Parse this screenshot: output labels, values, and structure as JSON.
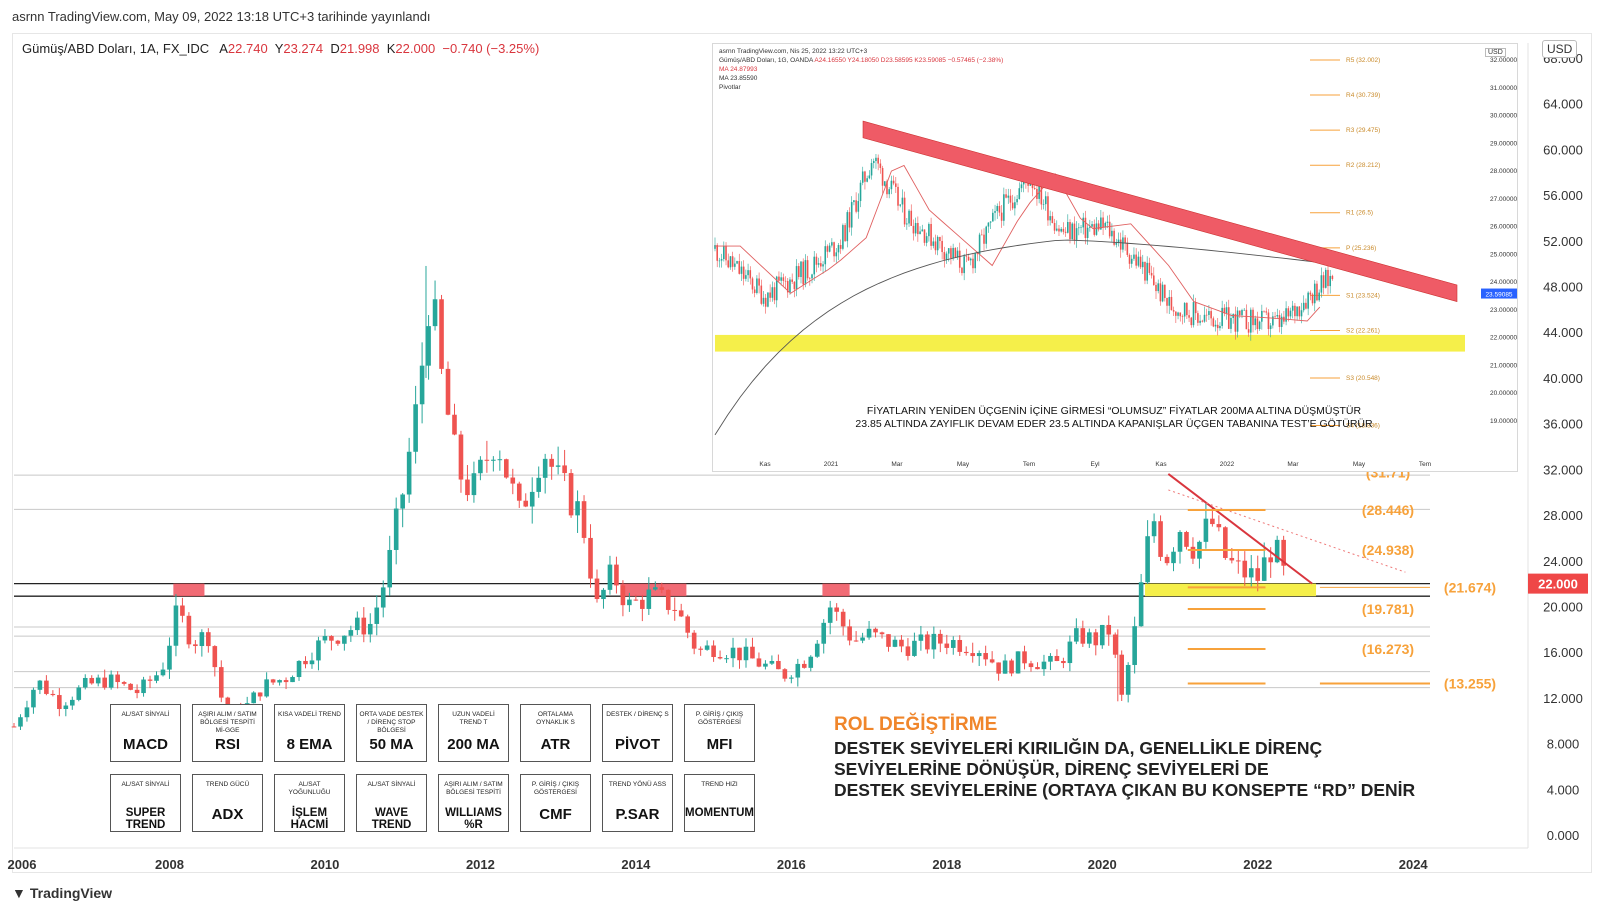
{
  "header": {
    "published": "asrnn TradingView.com, May 09, 2022 13:18 UTC+3 tarihinde yayınlandı"
  },
  "symbol": {
    "name": "Gümüş/ABD Doları, 1A, FX_IDC",
    "o_label": "A",
    "o": "22.740",
    "h_label": "Y",
    "h": "23.274",
    "l_label": "D",
    "l": "21.998",
    "c_label": "K",
    "c": "22.000",
    "change": "−0.740 (−3.25%)"
  },
  "currency_button": "USD",
  "footer_logo": "TradingView",
  "colors": {
    "up": "#26a69a",
    "down": "#ef5350",
    "level": "#f7a23b",
    "zone": "#f5ef4a",
    "res_block": "#ef5b66",
    "price_tag": "#ef4747"
  },
  "chart_data": [
    {
      "type": "candlestick",
      "title": "Gümüş/ABD Doları, 1A, FX_IDC",
      "x_ticks": [
        "2006",
        "2008",
        "2010",
        "2012",
        "2014",
        "2016",
        "2018",
        "2020",
        "2022",
        "2024"
      ],
      "y_ticks": [
        "0.000",
        "4.000",
        "8.000",
        "12.000",
        "16.000",
        "20.000",
        "24.000",
        "28.000",
        "32.000",
        "36.000",
        "40.000",
        "44.000",
        "48.000",
        "52.000",
        "56.000",
        "60.000",
        "64.000",
        "68.000"
      ],
      "ylim": [
        0,
        68
      ],
      "xlim": [
        2006,
        2024.5
      ],
      "last_price": "22.000",
      "levels": [
        {
          "label": "(28.446)",
          "value": 28.446
        },
        {
          "label": "(24.938)",
          "value": 24.938
        },
        {
          "label": "(21.674)",
          "value": 21.674
        },
        {
          "label": "(19.781)",
          "value": 19.781
        },
        {
          "label": "(16.273)",
          "value": 16.273
        },
        {
          "label": "(13.255)",
          "value": 13.255
        },
        {
          "label": "(31.71)",
          "value": 31.71
        }
      ],
      "support_resistance_band": [
        20.9,
        22.0
      ],
      "price_path": [
        [
          2006.0,
          9.5
        ],
        [
          2006.3,
          13.5
        ],
        [
          2006.6,
          11.5
        ],
        [
          2006.9,
          13.0
        ],
        [
          2007.2,
          13.6
        ],
        [
          2007.6,
          12.5
        ],
        [
          2007.9,
          14.5
        ],
        [
          2008.1,
          19.5
        ],
        [
          2008.3,
          17.0
        ],
        [
          2008.5,
          17.5
        ],
        [
          2008.7,
          11.0
        ],
        [
          2008.9,
          10.5
        ],
        [
          2009.2,
          13.0
        ],
        [
          2009.5,
          13.8
        ],
        [
          2009.8,
          16.0
        ],
        [
          2010.0,
          17.0
        ],
        [
          2010.3,
          18.0
        ],
        [
          2010.6,
          18.5
        ],
        [
          2010.8,
          23.0
        ],
        [
          2011.0,
          30.0
        ],
        [
          2011.2,
          38.0
        ],
        [
          2011.35,
          48.0
        ],
        [
          2011.5,
          40.0
        ],
        [
          2011.7,
          32.0
        ],
        [
          2011.9,
          30.0
        ],
        [
          2012.2,
          35.0
        ],
        [
          2012.5,
          28.0
        ],
        [
          2012.8,
          34.0
        ],
        [
          2013.0,
          31.0
        ],
        [
          2013.3,
          28.0
        ],
        [
          2013.5,
          20.0
        ],
        [
          2013.7,
          23.0
        ],
        [
          2013.9,
          20.0
        ],
        [
          2014.2,
          21.0
        ],
        [
          2014.5,
          20.0
        ],
        [
          2014.8,
          16.0
        ],
        [
          2015.0,
          16.5
        ],
        [
          2015.3,
          16.0
        ],
        [
          2015.6,
          15.0
        ],
        [
          2015.9,
          14.0
        ],
        [
          2016.2,
          15.5
        ],
        [
          2016.5,
          20.0
        ],
        [
          2016.8,
          17.0
        ],
        [
          2017.0,
          17.5
        ],
        [
          2017.4,
          16.5
        ],
        [
          2017.7,
          16.7
        ],
        [
          2018.0,
          17.0
        ],
        [
          2018.4,
          16.5
        ],
        [
          2018.7,
          14.5
        ],
        [
          2019.0,
          15.5
        ],
        [
          2019.4,
          14.8
        ],
        [
          2019.7,
          17.5
        ],
        [
          2019.9,
          17.0
        ],
        [
          2020.1,
          18.0
        ],
        [
          2020.25,
          12.0
        ],
        [
          2020.4,
          17.0
        ],
        [
          2020.55,
          24.0
        ],
        [
          2020.65,
          28.0
        ],
        [
          2020.8,
          24.0
        ],
        [
          2021.0,
          27.0
        ],
        [
          2021.2,
          25.0
        ],
        [
          2021.4,
          27.5
        ],
        [
          2021.6,
          24.0
        ],
        [
          2021.8,
          23.0
        ],
        [
          2022.0,
          22.5
        ],
        [
          2022.2,
          25.5
        ],
        [
          2022.35,
          22.5
        ]
      ]
    },
    {
      "type": "candlestick",
      "title": "Gümüş/ABD Doları, 1G, OANDA",
      "x_ticks": [
        "Kas",
        "2021",
        "Mar",
        "May",
        "Tem",
        "Eyl",
        "Kas",
        "2022",
        "Mar",
        "May",
        "Tem"
      ],
      "y_ticks": [
        "19.00000",
        "20.00000",
        "21.00000",
        "22.00000",
        "23.00000",
        "24.00000",
        "25.00000",
        "26.00000",
        "27.00000",
        "28.00000",
        "29.00000",
        "30.00000",
        "31.00000",
        "32.00000"
      ],
      "ylim": [
        18.8,
        32.3
      ],
      "pivots": [
        {
          "label": "R5 (32.002)",
          "value": 32.002
        },
        {
          "label": "R4 (30.739)",
          "value": 30.739
        },
        {
          "label": "R3 (29.475)",
          "value": 29.475
        },
        {
          "label": "R2 (28.212)",
          "value": 28.212
        },
        {
          "label": "R1 (26.5)",
          "value": 26.5
        },
        {
          "label": "P (25.236)",
          "value": 25.236
        },
        {
          "label": "S1 (23.524)",
          "value": 23.524
        },
        {
          "label": "S2 (22.261)",
          "value": 22.261
        },
        {
          "label": "S3 (20.548)",
          "value": 20.548
        },
        {
          "label": "S4 (18.836)",
          "value": 18.836
        }
      ],
      "last_price": "23.59085"
    }
  ],
  "inset": {
    "watermark": "asrnn TradingView.com, Nis 25, 2022 13:22 UTC+3",
    "title": "Gümüş/ABD Doları, 1G, OANDA",
    "o": "A24.16550",
    "h": "Y24.18050",
    "l": "D23.58595",
    "c": "K23.59085",
    "chg": "−0.57465 (−2.38%)",
    "ma1": "MA  24.87993",
    "ma2": "MA  23.85590",
    "pivot_label": "Pivotlar",
    "currency": "USD",
    "note_line1": "FİYATLARIN YENİDEN ÜÇGENİN İÇİNE GİRMESİ “OLUMSUZ” FİYATLAR 200MA ALTINA DÜŞMÜŞTÜR",
    "note_line2": "23.85 ALTINDA ZAYIFLIK DEVAM EDER 23.5 ALTINDA KAPANIŞLAR  ÜÇGEN TABANINA TEST’E GÖTÜRÜR"
  },
  "indicators_row1": [
    {
      "desc": "AL/SAT SİNYALİ",
      "name": "MACD"
    },
    {
      "desc": "AŞIRI ALIM / SATIM BÖLGESİ TESPİTİ Mİ-GGE",
      "name": "RSI"
    },
    {
      "desc": "KISA VADELİ TREND",
      "name": "8 EMA"
    },
    {
      "desc": "ORTA VADE DESTEK / DİRENÇ STOP BÖLGESİ",
      "name": "50 MA"
    },
    {
      "desc": "UZUN VADELİ TREND T",
      "name": "200 MA"
    },
    {
      "desc": "ORTALAMA OYNAKLIK S",
      "name": "ATR"
    },
    {
      "desc": "DESTEK / DİRENÇ S",
      "name": "PİVOT"
    },
    {
      "desc": "P. GİRİŞ / ÇIKIŞ GÖSTERGESİ",
      "name": "MFI"
    }
  ],
  "indicators_row2": [
    {
      "desc": "AL/SAT SİNYALİ",
      "name": "SUPER TREND"
    },
    {
      "desc": "TREND GÜCÜ",
      "name": "ADX"
    },
    {
      "desc": "AL/SAT YOĞUNLUĞU",
      "name": "İŞLEM HACMİ"
    },
    {
      "desc": "AL/SAT SİNYALİ",
      "name": "WAVE TREND"
    },
    {
      "desc": "AŞIRI ALIM / SATIM BÖLGESİ TESPİTİ",
      "name": "WILLIAMS %R"
    },
    {
      "desc": "P. GİRİŞ / ÇIKIŞ GÖSTERGESİ",
      "name": "CMF"
    },
    {
      "desc": "TREND YÖNÜ ASS",
      "name": "P.SAR"
    },
    {
      "desc": "TREND HIZI",
      "name": "MOMENTUM"
    }
  ],
  "annotation": {
    "title": "ROL DEĞİŞTİRME",
    "line1": "DESTEK SEVİYELERİ KIRILIĞIN DA, GENELLİKLE DİRENÇ",
    "line2": "SEVİYELERİNE DÖNÜŞÜR, DİRENÇ SEVİYELERİ DE",
    "line3": "DESTEK SEVİYELERİNE (ORTAYA ÇIKAN BU KONSEPTE “RD” DENİR"
  }
}
